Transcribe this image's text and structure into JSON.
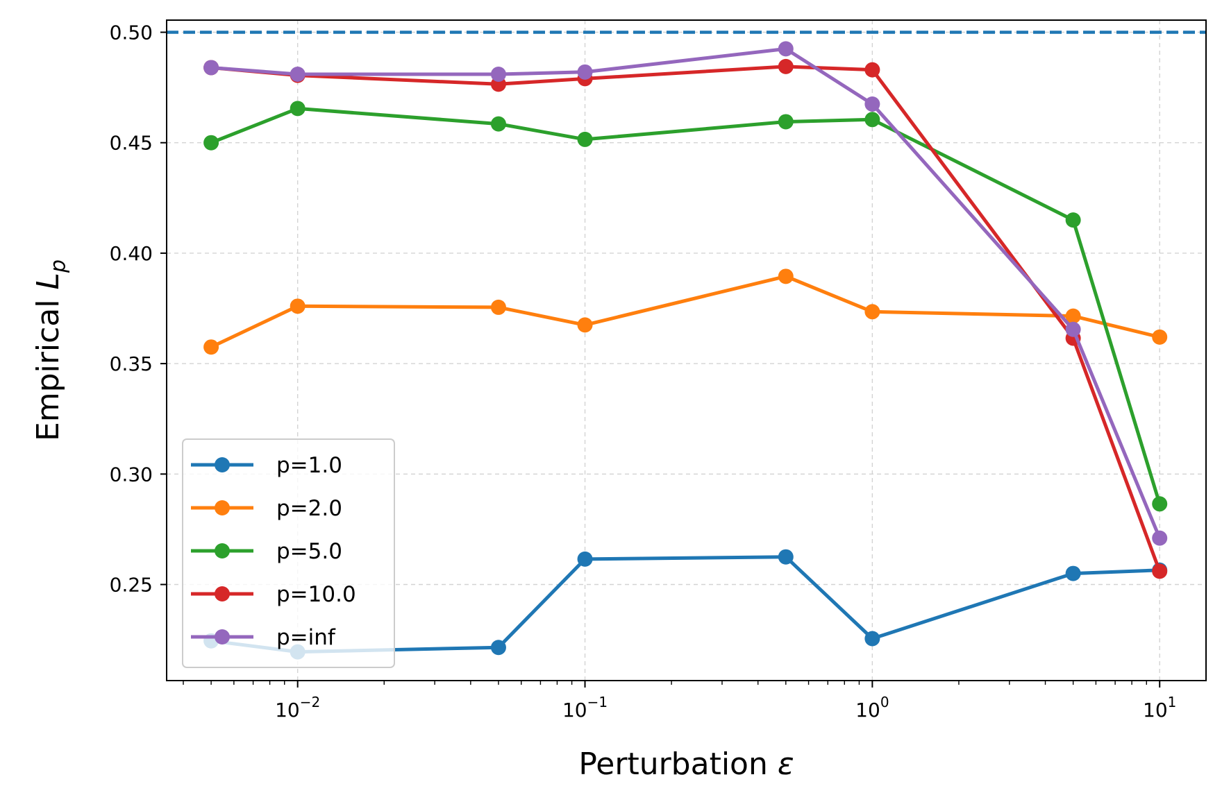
{
  "chart_data": {
    "type": "line",
    "title": "",
    "xlabel": "Perturbation",
    "xlabel_symbol": "ε",
    "ylabel": "Empirical",
    "ylabel_symbol": "L",
    "ylabel_subscript": "p",
    "xscale": "log",
    "xlim": [
      0.0035,
      14.5
    ],
    "ylim": [
      0.2065,
      0.5055
    ],
    "x": [
      0.005,
      0.01,
      0.05,
      0.1,
      0.5,
      1,
      5,
      10
    ],
    "x_ticks": [
      {
        "value": 0.01,
        "base": "10",
        "exp": "−2"
      },
      {
        "value": 0.1,
        "base": "10",
        "exp": "−1"
      },
      {
        "value": 1,
        "base": "10",
        "exp": "0"
      },
      {
        "value": 10,
        "base": "10",
        "exp": "1"
      }
    ],
    "y_ticks": [
      {
        "value": 0.25,
        "label": "0.25"
      },
      {
        "value": 0.3,
        "label": "0.30"
      },
      {
        "value": 0.35,
        "label": "0.35"
      },
      {
        "value": 0.4,
        "label": "0.40"
      },
      {
        "value": 0.45,
        "label": "0.45"
      },
      {
        "value": 0.5,
        "label": "0.50"
      }
    ],
    "grid": true,
    "reference_line": {
      "y": 0.5,
      "style": "dashed",
      "color": "#1f77b4"
    },
    "legend_position": "lower-left",
    "series": [
      {
        "name": "p=1.0",
        "color": "#1f77b4",
        "values": [
          0.2245,
          0.2195,
          0.2215,
          0.2615,
          0.2625,
          0.2255,
          0.255,
          0.2565
        ]
      },
      {
        "name": "p=2.0",
        "color": "#ff7f0e",
        "values": [
          0.3575,
          0.376,
          0.3755,
          0.3675,
          0.3895,
          0.3735,
          0.3715,
          0.362
        ]
      },
      {
        "name": "p=5.0",
        "color": "#2ca02c",
        "values": [
          0.45,
          0.4655,
          0.4585,
          0.4515,
          0.4595,
          0.4605,
          0.415,
          0.2865
        ]
      },
      {
        "name": "p=10.0",
        "color": "#d62728",
        "values": [
          0.484,
          0.4805,
          0.4765,
          0.479,
          0.4845,
          0.483,
          0.3615,
          0.256
        ]
      },
      {
        "name": "p=inf",
        "color": "#9467bd",
        "values": [
          0.484,
          0.481,
          0.481,
          0.482,
          0.4925,
          0.4675,
          0.3655,
          0.271
        ]
      }
    ]
  }
}
